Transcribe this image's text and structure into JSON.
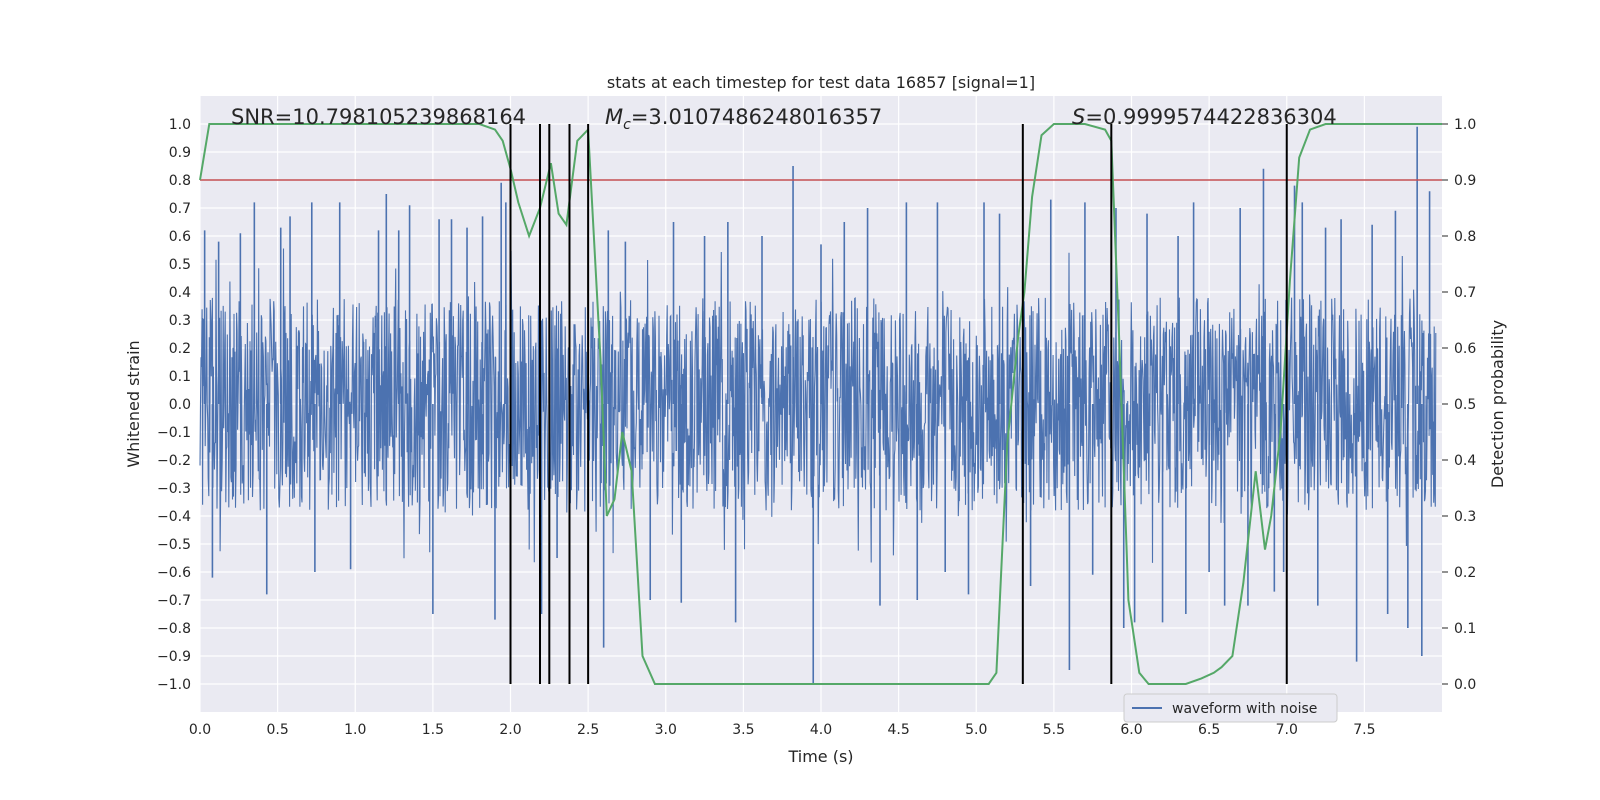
{
  "chart_data": {
    "type": "line",
    "title": "stats at each timestep for test data 16857 [signal=1]",
    "xlabel": "Time (s)",
    "ylabel_left": "Whitened strain",
    "ylabel_right": "Detection probability",
    "xlim": [
      0.0,
      8.0
    ],
    "ylim_left": [
      -1.1,
      1.1
    ],
    "ylim_right": [
      -0.05,
      1.05
    ],
    "x_ticks": [
      "0.0",
      "0.5",
      "1.0",
      "1.5",
      "2.0",
      "2.5",
      "3.0",
      "3.5",
      "4.0",
      "4.5",
      "5.0",
      "5.5",
      "6.0",
      "6.5",
      "7.0",
      "7.5"
    ],
    "y_left_ticks": [
      "1.0",
      "0.9",
      "0.8",
      "0.7",
      "0.6",
      "0.5",
      "0.4",
      "0.3",
      "0.2",
      "0.1",
      "0.0",
      "−0.1",
      "−0.2",
      "−0.3",
      "−0.4",
      "−0.5",
      "−0.6",
      "−0.7",
      "−0.8",
      "−0.9",
      "−1.0"
    ],
    "y_right_ticks": [
      "1.0",
      "0.9",
      "0.8",
      "0.7",
      "0.6",
      "0.5",
      "0.4",
      "0.3",
      "0.2",
      "0.1",
      "0.0"
    ],
    "grid": true,
    "annotations": {
      "snr": "SNR=10.798105239868164",
      "mc": "=3.0107486248016357",
      "mc_symbol": "M",
      "mc_sub": "c",
      "s": "=0.9999574422836304",
      "s_symbol": "S"
    },
    "threshold": {
      "value": 0.9,
      "axis": "right",
      "color": "#c44e52"
    },
    "vertical_lines_x": [
      2.0,
      2.19,
      2.25,
      2.38,
      2.5,
      5.3,
      5.87,
      7.0
    ],
    "legend": {
      "position": "lower-right",
      "entries": [
        "waveform with noise"
      ]
    },
    "series": [
      {
        "name": "waveform with noise",
        "axis": "left",
        "color": "#4c72b0",
        "kind": "noise",
        "typical_amplitude": 0.38,
        "max_peak": 1.0,
        "min_peak": -1.0
      },
      {
        "name": "detection probability",
        "axis": "right",
        "color": "#55a868",
        "x": [
          0.0,
          0.06,
          0.2,
          0.5,
          1.0,
          1.5,
          1.8,
          1.9,
          1.95,
          2.0,
          2.05,
          2.12,
          2.19,
          2.26,
          2.31,
          2.36,
          2.43,
          2.5,
          2.58,
          2.62,
          2.67,
          2.72,
          2.78,
          2.85,
          2.93,
          3.0,
          3.2,
          3.4,
          3.6,
          3.8,
          4.0,
          4.2,
          4.5,
          4.8,
          5.0,
          5.08,
          5.13,
          5.2,
          5.27,
          5.31,
          5.36,
          5.42,
          5.5,
          5.7,
          5.83,
          5.87,
          5.92,
          5.98,
          6.05,
          6.11,
          6.2,
          6.35,
          6.45,
          6.53,
          6.58,
          6.65,
          6.72,
          6.8,
          6.86,
          6.9,
          6.96,
          7.02,
          7.08,
          7.15,
          7.25,
          7.5,
          7.8,
          8.0
        ],
        "y": [
          0.9,
          1.0,
          1.0,
          1.0,
          1.0,
          1.0,
          1.0,
          0.99,
          0.97,
          0.92,
          0.86,
          0.8,
          0.85,
          0.93,
          0.84,
          0.82,
          0.97,
          0.99,
          0.58,
          0.3,
          0.33,
          0.45,
          0.38,
          0.05,
          0.0,
          0.0,
          0.0,
          0.0,
          0.0,
          0.0,
          0.0,
          0.0,
          0.0,
          0.0,
          0.0,
          0.0,
          0.02,
          0.43,
          0.62,
          0.7,
          0.87,
          0.98,
          1.0,
          1.0,
          0.99,
          0.97,
          0.62,
          0.15,
          0.02,
          0.0,
          0.0,
          0.0,
          0.01,
          0.02,
          0.03,
          0.05,
          0.18,
          0.38,
          0.24,
          0.3,
          0.45,
          0.72,
          0.94,
          0.99,
          1.0,
          1.0,
          1.0,
          1.0
        ]
      }
    ],
    "strain_peaks": [
      [
        0.03,
        0.62
      ],
      [
        0.08,
        -0.62
      ],
      [
        0.12,
        0.58
      ],
      [
        0.26,
        0.61
      ],
      [
        0.35,
        0.72
      ],
      [
        0.43,
        -0.68
      ],
      [
        0.52,
        0.63
      ],
      [
        0.58,
        0.67
      ],
      [
        0.72,
        0.72
      ],
      [
        0.74,
        -0.6
      ],
      [
        0.9,
        0.72
      ],
      [
        0.97,
        -0.59
      ],
      [
        1.15,
        0.62
      ],
      [
        1.2,
        0.75
      ],
      [
        1.28,
        0.62
      ],
      [
        1.35,
        0.71
      ],
      [
        1.5,
        -0.75
      ],
      [
        1.54,
        0.66
      ],
      [
        1.62,
        0.66
      ],
      [
        1.72,
        0.63
      ],
      [
        1.82,
        0.67
      ],
      [
        1.9,
        -0.77
      ],
      [
        1.94,
        0.79
      ],
      [
        1.97,
        0.72
      ],
      [
        2.0,
        -0.5
      ],
      [
        2.2,
        -0.75
      ],
      [
        2.3,
        -0.55
      ],
      [
        2.6,
        -0.87
      ],
      [
        2.63,
        0.62
      ],
      [
        2.74,
        0.58
      ],
      [
        2.9,
        -0.7
      ],
      [
        3.05,
        0.65
      ],
      [
        3.1,
        -0.71
      ],
      [
        3.25,
        0.6
      ],
      [
        3.4,
        0.65
      ],
      [
        3.45,
        -0.78
      ],
      [
        3.62,
        0.6
      ],
      [
        3.82,
        0.85
      ],
      [
        3.95,
        -1.0
      ],
      [
        4.0,
        0.57
      ],
      [
        4.15,
        0.65
      ],
      [
        4.3,
        0.7
      ],
      [
        4.38,
        -0.72
      ],
      [
        4.55,
        0.72
      ],
      [
        4.62,
        -0.7
      ],
      [
        4.75,
        0.72
      ],
      [
        4.8,
        -0.6
      ],
      [
        4.95,
        -0.68
      ],
      [
        5.05,
        0.72
      ],
      [
        5.15,
        0.68
      ],
      [
        5.3,
        0.62
      ],
      [
        5.35,
        -0.65
      ],
      [
        5.48,
        0.73
      ],
      [
        5.6,
        -0.95
      ],
      [
        5.7,
        0.72
      ],
      [
        5.75,
        -0.61
      ],
      [
        5.9,
        0.7
      ],
      [
        5.95,
        -0.8
      ],
      [
        6.02,
        -0.78
      ],
      [
        6.1,
        0.68
      ],
      [
        6.2,
        -0.78
      ],
      [
        6.3,
        0.6
      ],
      [
        6.35,
        -0.75
      ],
      [
        6.4,
        0.72
      ],
      [
        6.5,
        -0.6
      ],
      [
        6.6,
        -0.72
      ],
      [
        6.7,
        0.7
      ],
      [
        6.75,
        -0.72
      ],
      [
        6.85,
        0.84
      ],
      [
        6.92,
        -0.67
      ],
      [
        6.98,
        -0.6
      ],
      [
        7.05,
        0.78
      ],
      [
        7.1,
        0.72
      ],
      [
        7.2,
        -0.72
      ],
      [
        7.25,
        0.63
      ],
      [
        7.35,
        0.66
      ],
      [
        7.45,
        -0.92
      ],
      [
        7.55,
        0.64
      ],
      [
        7.65,
        -0.75
      ],
      [
        7.7,
        0.69
      ],
      [
        7.78,
        -0.8
      ],
      [
        7.84,
        0.99
      ],
      [
        7.87,
        -0.9
      ],
      [
        7.92,
        0.76
      ]
    ]
  }
}
